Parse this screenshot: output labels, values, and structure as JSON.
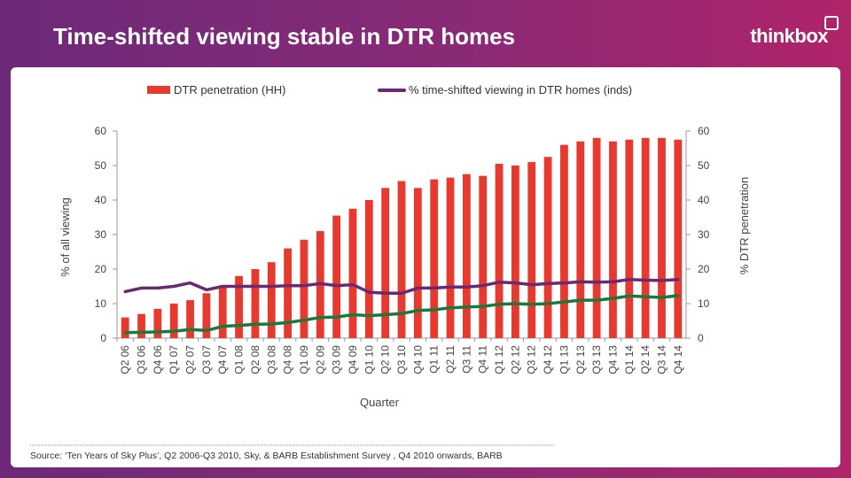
{
  "header": {
    "title": "Time-shifted viewing stable in DTR homes",
    "logo": "thinkbox"
  },
  "source": "Source: ‘Ten Years of Sky Plus’, Q2 2006-Q3 2010, Sky, & BARB Establishment Survey , Q4 2010 onwards, BARB",
  "colors": {
    "bar": "#e8392f",
    "purple_line": "#6a2a73",
    "green_line": "#1a7a3e"
  },
  "chart_data": {
    "type": "bar",
    "xlabel": "Quarter",
    "ylabel_left": "% of all viewing",
    "ylabel_right": "% DTR penetration",
    "ylim": [
      0,
      60
    ],
    "yticks": [
      0,
      10,
      20,
      30,
      40,
      50,
      60
    ],
    "legend_position": "top",
    "categories": [
      "Q2 06",
      "Q3 06",
      "Q4 06",
      "Q1 07",
      "Q2 07",
      "Q3 07",
      "Q4 07",
      "Q1 08",
      "Q2 08",
      "Q3 08",
      "Q4 08",
      "Q1 09",
      "Q2 09",
      "Q3 09",
      "Q4 09",
      "Q1 10",
      "Q2 10",
      "Q3 10",
      "Q4 10",
      "Q1 11",
      "Q2 11",
      "Q3 11",
      "Q4 11",
      "Q1 12",
      "Q2 12",
      "Q3 12",
      "Q4 12",
      "Q1 13",
      "Q2 13",
      "Q3 13",
      "Q4 13",
      "Q1 14",
      "Q2 14",
      "Q3 14",
      "Q4 14"
    ],
    "series": [
      {
        "name": "DTR penetration (HH)",
        "kind": "bar",
        "values": [
          6,
          7,
          8.5,
          10,
          11,
          13,
          15,
          18,
          20,
          22,
          26,
          28.5,
          31,
          35.5,
          37.5,
          40,
          43.5,
          45.5,
          43.5,
          46,
          46.5,
          47.5,
          47,
          50.5,
          50,
          51,
          52.5,
          56,
          57,
          58,
          57,
          57.5,
          58,
          58,
          57.5
        ]
      },
      {
        "name": "% time-shifted viewing in DTR homes (inds)",
        "kind": "line",
        "values": [
          13.5,
          14.5,
          14.5,
          15,
          16,
          14,
          15,
          15,
          15,
          15,
          15.2,
          15.2,
          15.8,
          15.2,
          15.5,
          13.3,
          13,
          13,
          14.5,
          14.5,
          14.8,
          14.8,
          15.2,
          16.2,
          16,
          15.5,
          15.8,
          16,
          16.3,
          16.2,
          16.3,
          17,
          16.8,
          16.7,
          17
        ]
      },
      {
        "name": "",
        "kind": "line",
        "values": [
          1.6,
          1.7,
          1.8,
          2,
          2.5,
          2.2,
          3.4,
          3.7,
          4,
          4.1,
          4.5,
          5.2,
          6,
          6.1,
          6.8,
          6.5,
          6.8,
          7.1,
          8,
          8.2,
          8.8,
          9,
          9.2,
          9.8,
          10,
          9.8,
          10,
          10.5,
          11,
          11,
          11.5,
          12.2,
          12,
          11.8,
          12.3
        ]
      }
    ]
  }
}
